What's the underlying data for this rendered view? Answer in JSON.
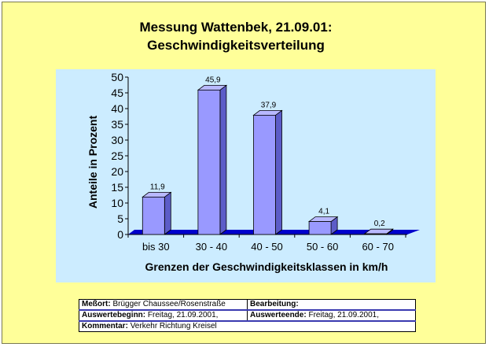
{
  "title_line1": "Messung Wattenbek, 21.09.01:",
  "title_line2": "Geschwindigkeitsverteilung",
  "chart_data": {
    "type": "bar",
    "categories": [
      "bis 30",
      "30 - 40",
      "40 - 50",
      "50 - 60",
      "60 - 70"
    ],
    "values": [
      11.9,
      45.9,
      37.9,
      4.1,
      0.2
    ],
    "data_labels": [
      "11,9",
      "45,9",
      "37,9",
      "4,1",
      "0,2"
    ],
    "yticks": [
      "0",
      "5",
      "10",
      "15",
      "20",
      "25",
      "30",
      "35",
      "40",
      "45",
      "50"
    ],
    "ylim": [
      0,
      50
    ],
    "ylabel": "Anteile in Prozent",
    "xlabel": "Grenzen der Geschwindigkeitsklassen in km/h",
    "grid": false,
    "style": "3d-column",
    "colors": {
      "bar_front": "#9999ff",
      "bar_side": "#5c5cc8",
      "bar_top": "#b8b8ff",
      "floor": "#0000cc",
      "plot_background": "#ccecff",
      "page_background": "#ffff99"
    }
  },
  "info": {
    "messort_label": "Meßort:",
    "messort_value": "Brügger Chaussee/Rosenstraße",
    "bearbeitung_label": "Bearbeitung:",
    "bearbeitung_value": "",
    "beginn_label": "Auswertebeginn:",
    "beginn_value": "Freitag, 21.09.2001,",
    "ende_label": "Auswerteende:",
    "ende_value": "Freitag, 21.09.2001,",
    "kommentar_label": "Kommentar:",
    "kommentar_value": "Verkehr Richtung Kreisel"
  }
}
